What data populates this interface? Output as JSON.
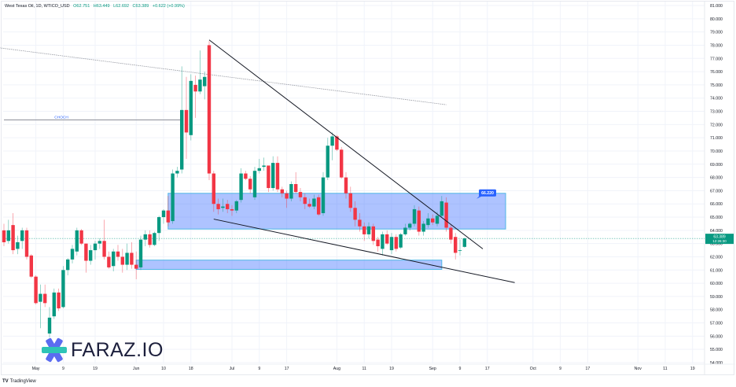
{
  "header": {
    "symbol": "West Texas Oil, 1D, WTICO_USD",
    "open": "O62.751",
    "high": "H63.449",
    "low": "L62.692",
    "close": "C63.389",
    "change": "+0.622 (+0.99%)"
  },
  "branding": {
    "tradingview": "TradingView",
    "watermark": "FARAZ.IO"
  },
  "colors": {
    "up": "#089981",
    "down": "#f23645",
    "zone": "#2962ff",
    "zone_fill": "rgba(41,98,255,0.38)",
    "grid": "#f0f3fa",
    "price_line": "#089981"
  },
  "chart_data": {
    "type": "candlestick",
    "title": "West Texas Oil, 1D, WTICO_USD",
    "ylim": [
      54,
      81
    ],
    "y_ticks": [
      "81.000",
      "80.000",
      "79.000",
      "78.000",
      "77.000",
      "76.000",
      "75.000",
      "74.000",
      "73.000",
      "72.000",
      "71.000",
      "70.000",
      "69.000",
      "68.000",
      "67.000",
      "66.000",
      "65.000",
      "64.000",
      "63.000",
      "62.000",
      "61.000",
      "60.000",
      "59.000",
      "58.000",
      "57.000",
      "56.000",
      "55.000",
      "54.000"
    ],
    "x_ticks": [
      "May",
      "9",
      "19",
      "Jun",
      "10",
      "18",
      "Jul",
      "9",
      "17",
      "Aug",
      "11",
      "19",
      "Sep",
      "9",
      "17",
      "Oct",
      "9",
      "17",
      "Nov",
      "11",
      "19"
    ],
    "x_tick_bar_index": [
      7,
      13,
      20,
      29,
      35,
      41,
      50,
      56,
      62,
      73,
      79,
      85,
      94,
      100,
      106,
      116,
      122,
      128,
      139,
      145,
      151
    ],
    "last_price": {
      "value": 63.389,
      "label": "63.389",
      "countdown": "12:26:30"
    },
    "candles": [
      [
        64.0,
        64.5,
        62.8,
        63.1
      ],
      [
        63.2,
        64.8,
        63.0,
        64.0
      ],
      [
        64.4,
        65.3,
        62.2,
        62.5
      ],
      [
        62.6,
        63.6,
        62.2,
        63.1
      ],
      [
        63.2,
        64.2,
        62.6,
        64.0
      ],
      [
        64.0,
        64.2,
        61.8,
        62.0
      ],
      [
        62.1,
        62.2,
        60.4,
        60.5
      ],
      [
        60.5,
        60.6,
        58.4,
        58.5
      ],
      [
        58.6,
        59.9,
        56.6,
        59.2
      ],
      [
        59.2,
        59.9,
        58.2,
        58.5
      ],
      [
        56.2,
        58.2,
        55.9,
        57.4
      ],
      [
        57.5,
        59.6,
        57.3,
        59.3
      ],
      [
        59.3,
        59.6,
        57.9,
        58.1
      ],
      [
        58.2,
        61.3,
        58.1,
        61.0
      ],
      [
        61.0,
        61.9,
        60.6,
        61.8
      ],
      [
        61.8,
        62.9,
        61.5,
        62.6
      ],
      [
        62.4,
        64.2,
        62.1,
        64.0
      ],
      [
        64.0,
        64.1,
        62.9,
        63.0
      ],
      [
        63.0,
        63.0,
        60.8,
        61.7
      ],
      [
        61.7,
        62.9,
        61.4,
        62.5
      ],
      [
        62.5,
        63.2,
        61.8,
        63.0
      ],
      [
        63.0,
        63.4,
        62.6,
        63.2
      ],
      [
        63.2,
        64.8,
        61.8,
        62.0
      ],
      [
        62.0,
        62.4,
        61.1,
        61.2
      ],
      [
        61.3,
        62.6,
        60.9,
        62.4
      ],
      [
        62.4,
        62.9,
        61.7,
        62.0
      ],
      [
        62.0,
        62.6,
        60.8,
        61.4
      ],
      [
        61.4,
        63.0,
        61.0,
        62.3
      ],
      [
        62.3,
        63.1,
        61.1,
        61.4
      ],
      [
        61.4,
        62.4,
        60.3,
        61.1
      ],
      [
        61.2,
        63.6,
        61.0,
        63.3
      ],
      [
        63.3,
        64.0,
        62.8,
        63.7
      ],
      [
        63.7,
        64.0,
        62.7,
        62.9
      ],
      [
        62.9,
        63.9,
        62.8,
        63.8
      ],
      [
        63.8,
        65.1,
        63.2,
        65.0
      ],
      [
        65.0,
        65.6,
        64.5,
        65.5
      ],
      [
        65.5,
        66.6,
        64.3,
        64.6
      ],
      [
        64.7,
        68.6,
        64.5,
        68.3
      ],
      [
        68.3,
        68.8,
        68.0,
        68.5
      ],
      [
        68.6,
        76.4,
        68.3,
        73.1
      ],
      [
        73.1,
        75.6,
        69.4,
        71.4
      ],
      [
        71.2,
        75.8,
        70.8,
        75.3
      ],
      [
        75.0,
        75.7,
        72.5,
        74.5
      ],
      [
        74.5,
        77.6,
        74.3,
        75.4
      ],
      [
        74.9,
        76.0,
        73.9,
        75.6
      ],
      [
        78.0,
        78.3,
        67.8,
        68.3
      ],
      [
        68.3,
        68.5,
        65.4,
        66.0
      ],
      [
        66.0,
        66.4,
        65.2,
        65.6
      ],
      [
        65.7,
        66.4,
        65.4,
        65.8
      ],
      [
        66.0,
        66.3,
        65.3,
        65.6
      ],
      [
        65.6,
        65.9,
        65.1,
        65.5
      ],
      [
        65.5,
        66.3,
        65.3,
        66.2
      ],
      [
        66.3,
        68.7,
        66.1,
        68.3
      ],
      [
        68.3,
        68.5,
        67.8,
        67.9
      ],
      [
        67.9,
        68.1,
        66.8,
        67.1
      ],
      [
        66.5,
        68.8,
        66.3,
        68.5
      ],
      [
        68.5,
        69.4,
        68.3,
        68.7
      ],
      [
        68.8,
        69.5,
        68.5,
        68.9
      ],
      [
        68.9,
        68.9,
        66.9,
        67.2
      ],
      [
        67.2,
        69.6,
        67.0,
        69.1
      ],
      [
        69.1,
        69.6,
        66.9,
        67.1
      ],
      [
        67.1,
        67.3,
        66.5,
        66.8
      ],
      [
        66.8,
        67.0,
        65.7,
        66.4
      ],
      [
        66.4,
        67.7,
        66.2,
        67.5
      ],
      [
        67.5,
        68.4,
        66.8,
        66.9
      ],
      [
        66.9,
        67.2,
        66.2,
        66.5
      ],
      [
        66.5,
        66.8,
        65.6,
        66.0
      ],
      [
        66.0,
        66.4,
        65.7,
        65.8
      ],
      [
        65.8,
        66.7,
        65.6,
        66.4
      ],
      [
        66.5,
        66.7,
        65.1,
        65.2
      ],
      [
        65.3,
        68.4,
        65.1,
        68.0
      ],
      [
        68.0,
        71.0,
        67.8,
        70.4
      ],
      [
        70.4,
        71.4,
        69.3,
        71.1
      ],
      [
        71.1,
        71.2,
        70.0,
        70.1
      ],
      [
        70.1,
        70.3,
        67.9,
        68.0
      ],
      [
        68.0,
        68.4,
        66.4,
        66.8
      ],
      [
        66.8,
        67.3,
        65.4,
        65.7
      ],
      [
        65.7,
        66.2,
        64.3,
        64.8
      ],
      [
        64.8,
        65.3,
        63.9,
        64.3
      ],
      [
        64.3,
        64.6,
        63.2,
        63.7
      ],
      [
        63.7,
        64.6,
        63.4,
        64.3
      ],
      [
        64.3,
        64.5,
        62.9,
        63.2
      ],
      [
        63.3,
        63.5,
        62.4,
        62.8
      ],
      [
        62.6,
        63.9,
        62.1,
        63.7
      ],
      [
        63.7,
        64.0,
        62.9,
        63.0
      ],
      [
        62.5,
        63.8,
        62.2,
        63.5
      ],
      [
        63.5,
        63.7,
        62.4,
        62.6
      ],
      [
        62.7,
        63.8,
        62.6,
        63.7
      ],
      [
        63.7,
        64.5,
        63.6,
        64.2
      ],
      [
        64.2,
        64.6,
        64.0,
        64.5
      ],
      [
        64.5,
        65.9,
        64.3,
        65.6
      ],
      [
        65.5,
        65.8,
        63.6,
        63.9
      ],
      [
        63.9,
        64.7,
        63.6,
        64.5
      ],
      [
        64.4,
        65.3,
        64.2,
        64.9
      ],
      [
        64.9,
        65.2,
        64.4,
        64.6
      ],
      [
        64.5,
        65.4,
        64.3,
        65.1
      ],
      [
        65.1,
        66.6,
        65.0,
        66.2
      ],
      [
        66.1,
        66.5,
        63.9,
        64.2
      ],
      [
        64.2,
        64.4,
        63.0,
        63.3
      ],
      [
        63.5,
        63.8,
        61.8,
        62.3
      ],
      [
        62.5,
        63.3,
        62.1,
        62.5
      ],
      [
        62.751,
        63.449,
        62.692,
        63.389
      ]
    ],
    "annotations": {
      "choch": {
        "label": "CHOCH",
        "price": 72.35,
        "from_bar": 0,
        "to_bar": 39
      },
      "zone_upper": {
        "label": "66.220",
        "top": 66.8,
        "bottom": 64.1,
        "from_bar": 36,
        "to_bar": 110
      },
      "zone_lower": {
        "top": 61.75,
        "bottom": 61.05,
        "from_bar": 29,
        "to_bar": 96
      },
      "trend_upper": {
        "from": [
          45,
          78.4
        ],
        "to": [
          105,
          62.6
        ]
      },
      "trend_lower": {
        "from": [
          46,
          64.85
        ],
        "to": [
          112,
          60.05
        ]
      },
      "long_trend": {
        "from": [
          -1,
          77.8
        ],
        "to": [
          97,
          73.5
        ]
      }
    }
  }
}
